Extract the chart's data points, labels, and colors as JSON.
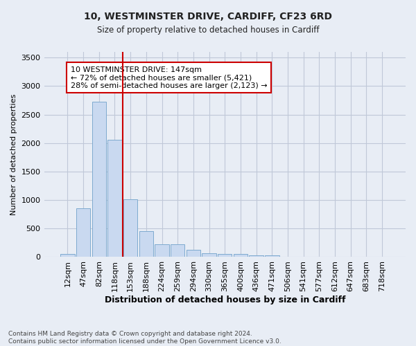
{
  "title1": "10, WESTMINSTER DRIVE, CARDIFF, CF23 6RD",
  "title2": "Size of property relative to detached houses in Cardiff",
  "xlabel": "Distribution of detached houses by size in Cardiff",
  "ylabel": "Number of detached properties",
  "categories": [
    "12sqm",
    "47sqm",
    "82sqm",
    "118sqm",
    "153sqm",
    "188sqm",
    "224sqm",
    "259sqm",
    "294sqm",
    "330sqm",
    "365sqm",
    "400sqm",
    "436sqm",
    "471sqm",
    "506sqm",
    "541sqm",
    "577sqm",
    "612sqm",
    "647sqm",
    "683sqm",
    "718sqm"
  ],
  "values": [
    60,
    850,
    2720,
    2060,
    1010,
    450,
    220,
    220,
    130,
    65,
    55,
    50,
    30,
    25,
    0,
    0,
    0,
    0,
    0,
    0,
    0
  ],
  "bar_color": "#c9d9f0",
  "bar_edge_color": "#7eaacf",
  "vline_pos": 3.5,
  "vline_color": "#cc0000",
  "annotation_text": "10 WESTMINSTER DRIVE: 147sqm\n← 72% of detached houses are smaller (5,421)\n28% of semi-detached houses are larger (2,123) →",
  "annotation_box_color": "#cc0000",
  "annotation_bg": "#ffffff",
  "ylim": [
    0,
    3600
  ],
  "yticks": [
    0,
    500,
    1000,
    1500,
    2000,
    2500,
    3000,
    3500
  ],
  "grid_color": "#c0c8d8",
  "bg_color": "#e8edf5",
  "footer1": "Contains HM Land Registry data © Crown copyright and database right 2024.",
  "footer2": "Contains public sector information licensed under the Open Government Licence v3.0."
}
